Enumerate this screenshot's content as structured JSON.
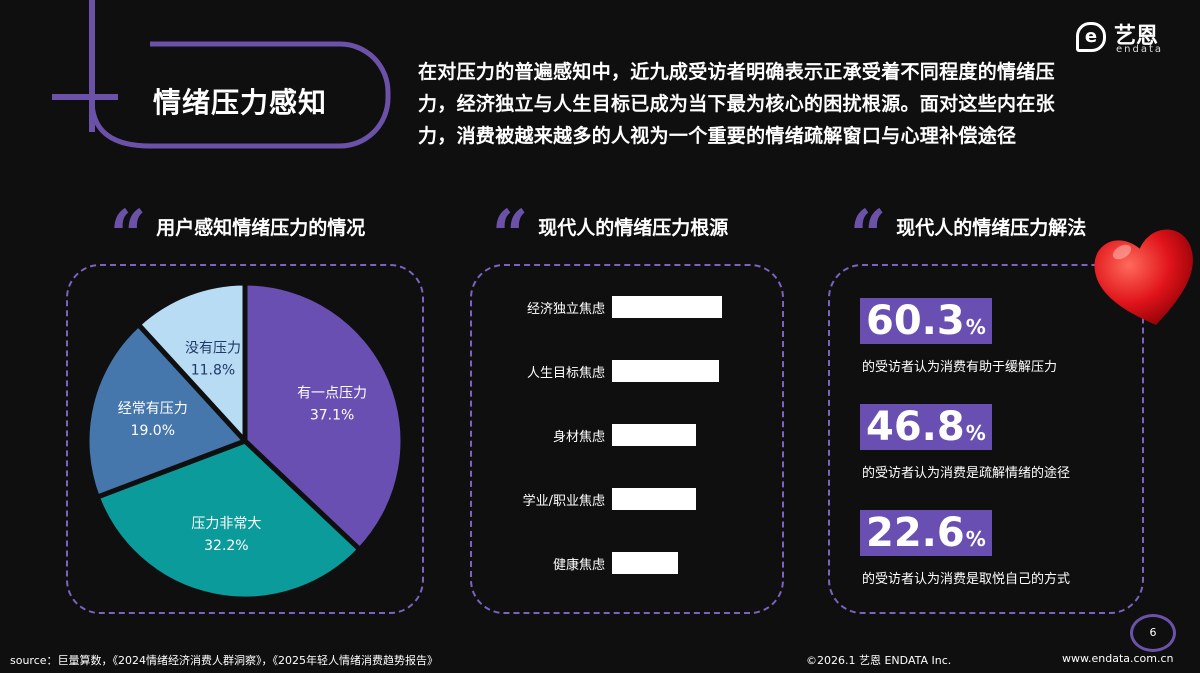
{
  "header": {
    "title": "情绪压力感知",
    "intro_lines": [
      "在对压力的普遍感知中，近九成受访者明确表示正承受着不同程度的情绪压",
      "力，经济独立与人生目标已成为当下最为核心的困扰根源。面对这些内在张",
      "力，消费被越来越多的人视为一个重要的情绪疏解窗口与心理补偿途径"
    ]
  },
  "logo": {
    "mark": "e",
    "cn": "艺恩",
    "en": "endata"
  },
  "sections": {
    "pie_title": "用户感知情绪压力的情况",
    "bars_title": "现代人的情绪压力根源",
    "stats_title": "现代人的情绪压力解法"
  },
  "colors": {
    "purple": "#6a4fb3",
    "steel_blue": "#4577ad",
    "light_blue": "#b9dcf5",
    "teal": "#0b9b9a",
    "dashed_border": "#7b63bf",
    "heart": "#e0141a"
  },
  "chart_data": [
    {
      "type": "pie",
      "title": "用户感知情绪压力的情况",
      "slices": [
        {
          "label": "有一点压力",
          "value": 37.1,
          "display": "37.1%",
          "color": "#6a4fb3"
        },
        {
          "label": "压力非常大",
          "value": 32.2,
          "display": "32.2%",
          "color": "#0b9b9a"
        },
        {
          "label": "经常有压力",
          "value": 19.0,
          "display": "19.0%",
          "color": "#4577ad"
        },
        {
          "label": "没有压力",
          "value": 11.8,
          "display": "11.8%",
          "color": "#b9dcf5"
        }
      ]
    },
    {
      "type": "bar",
      "orientation": "horizontal",
      "title": "现代人的情绪压力根源",
      "categories": [
        "经济独立焦虑",
        "人生目标焦虑",
        "身材焦虑",
        "学业/职业焦虑",
        "健康焦虑"
      ],
      "values": [
        100,
        97,
        76,
        76,
        60
      ],
      "value_labels_visible": false
    }
  ],
  "stats": [
    {
      "value": "60.3",
      "unit": "%",
      "desc": "的受访者认为消费有助于缓解压力"
    },
    {
      "value": "46.8",
      "unit": "%",
      "desc": "的受访者认为消费是疏解情绪的途径"
    },
    {
      "value": "22.6",
      "unit": "%",
      "desc": "的受访者认为消费是取悦自己的方式"
    }
  ],
  "footer": {
    "source": "source：巨量算数，《2024情绪经济消费人群洞察》，《2025年轻人情绪消费趋势报告》",
    "copyright": "©2026.1 艺恩 ENDATA Inc.",
    "website": "www.endata.com.cn",
    "page": "6"
  }
}
